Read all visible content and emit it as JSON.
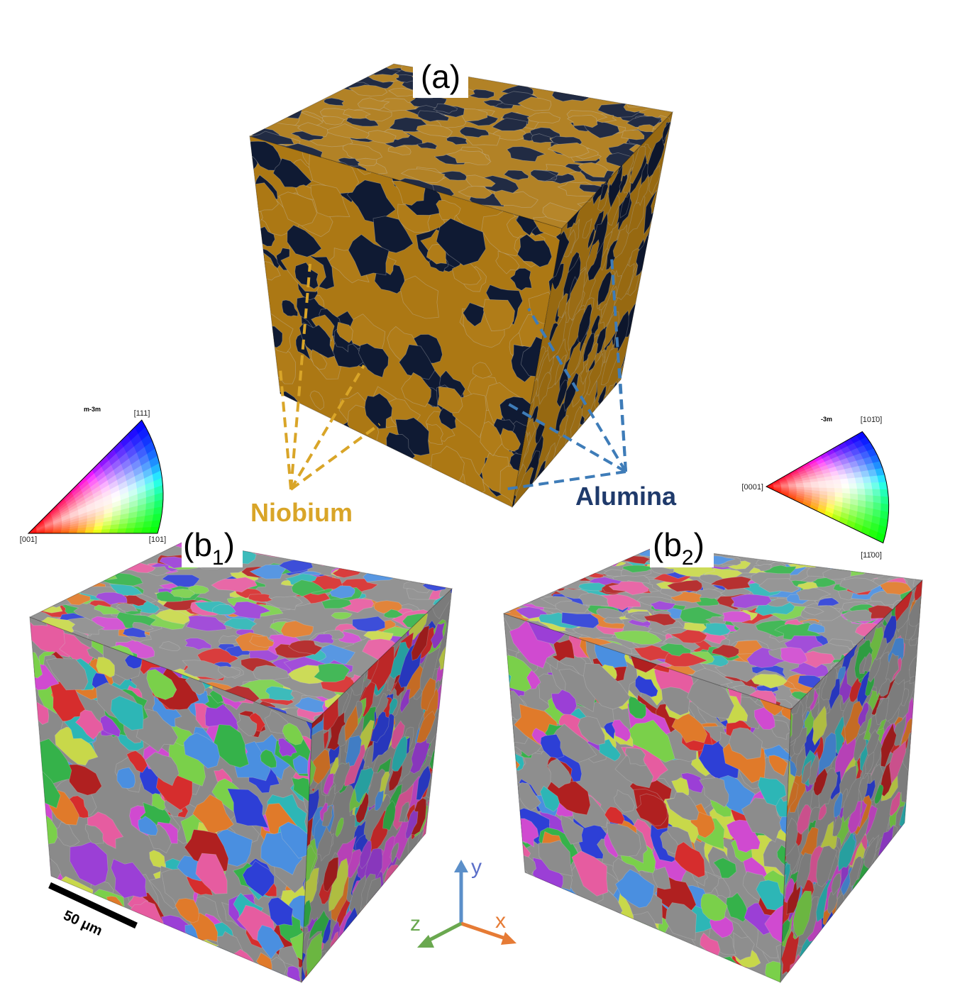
{
  "panels": {
    "a": {
      "label": "(a)",
      "phases": [
        "Niobium",
        "Alumina"
      ]
    },
    "b1": {
      "label": {
        "main": "(b",
        "sub": "1",
        "close": ")"
      }
    },
    "b2": {
      "label": {
        "main": "(b",
        "sub": "2",
        "close": ")"
      }
    }
  },
  "ipf_legends": [
    {
      "symmetry": "m-3m",
      "poles": [
        "[001]",
        "[101]",
        "[111]"
      ]
    },
    {
      "symmetry": "-3m",
      "poles": [
        "[0001]",
        "[101̄0]",
        "[11̄00]"
      ]
    }
  ],
  "axes": {
    "x": "x",
    "y": "y",
    "z": "z"
  },
  "scale_bar": "50 μm"
}
